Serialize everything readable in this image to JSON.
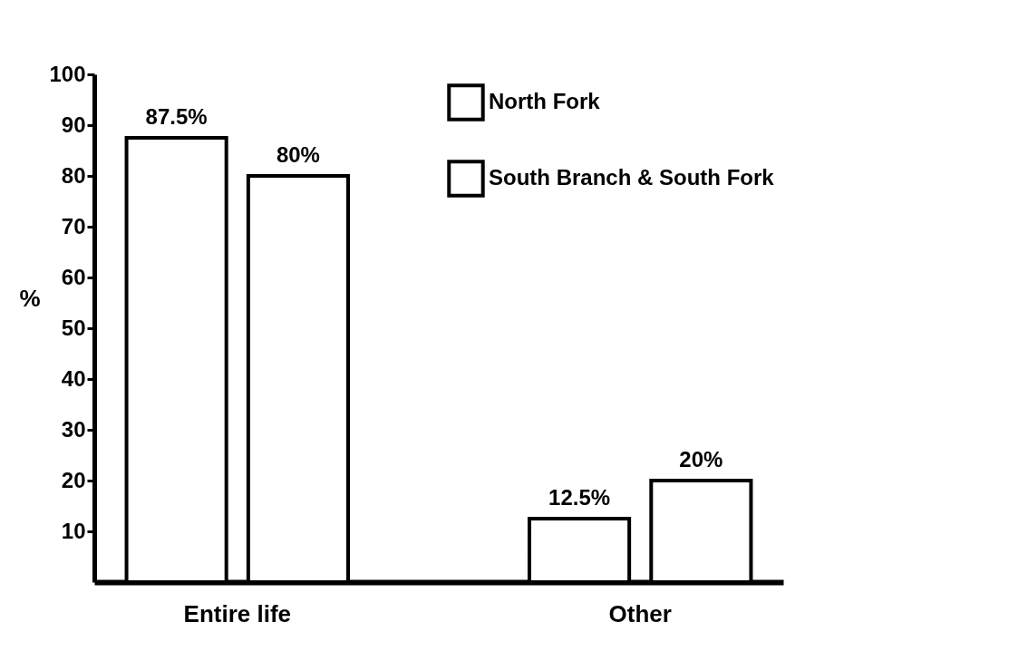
{
  "chart_data": {
    "type": "bar",
    "ylabel": "%",
    "categories": [
      "Entire life",
      "Other"
    ],
    "series": [
      {
        "name": "North Fork",
        "color": "#ffffff",
        "values": [
          87.5,
          12.5
        ],
        "value_labels": [
          "87.5%",
          "12.5%"
        ]
      },
      {
        "name": "South Branch & South Fork",
        "color": "#ffffff",
        "values": [
          80,
          20
        ],
        "value_labels": [
          "80%",
          "20%"
        ]
      }
    ],
    "ylim": [
      0,
      100
    ],
    "yticks": [
      10,
      20,
      30,
      40,
      50,
      60,
      70,
      80,
      90,
      100
    ],
    "grid": false,
    "legend": "top right"
  }
}
